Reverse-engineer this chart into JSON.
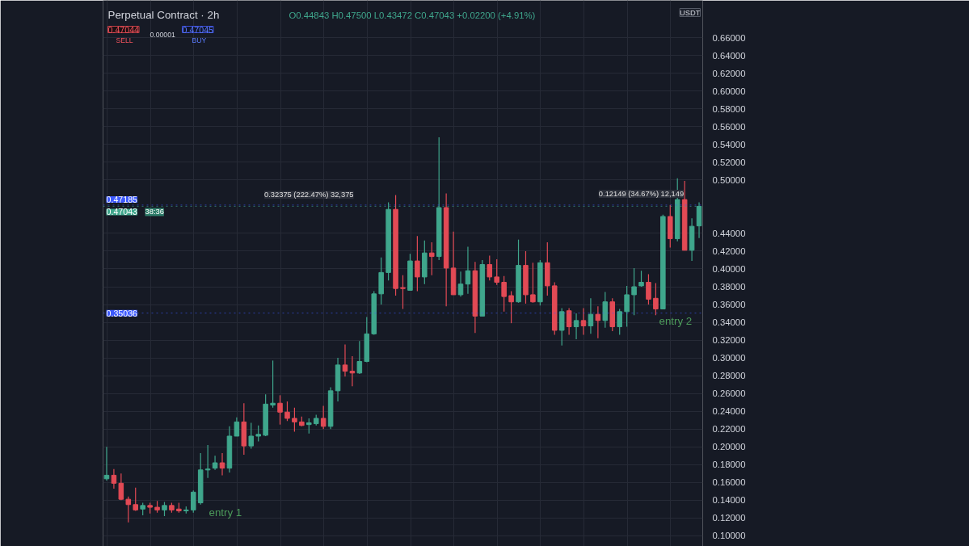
{
  "chart_data": {
    "type": "candlestick",
    "title": "Perpetual Contract · 2h",
    "subtitle": "O0.44843 H0.47500 L0.43472 C0.47043 +0.02200 (+4.91%)",
    "ylim": [
      0.088,
      0.702
    ],
    "tick_labels": "y",
    "grid": true,
    "categories": [
      null,
      null,
      null,
      null,
      null,
      null,
      null,
      null,
      null,
      null,
      null,
      null,
      null,
      null,
      null,
      null,
      null,
      null,
      null,
      null,
      null,
      null,
      null,
      null,
      null,
      null,
      null,
      null,
      null,
      null,
      null,
      null,
      null,
      null,
      null,
      null,
      null,
      null,
      null,
      null,
      null,
      null,
      null,
      null,
      null,
      null,
      null,
      null,
      null,
      null,
      null,
      null,
      null,
      null,
      null,
      null,
      null,
      null,
      null,
      null,
      null,
      null,
      null,
      null,
      null,
      null,
      null,
      null,
      null,
      null,
      null,
      null,
      null,
      null,
      null,
      null,
      null,
      null,
      null,
      null,
      null,
      null,
      null
    ],
    "yticks": [
      {
        "value": 0.1,
        "label": "0.10000"
      },
      {
        "value": 0.12,
        "label": "0.12000"
      },
      {
        "value": 0.14,
        "label": "0.14000"
      },
      {
        "value": 0.16,
        "label": "0.16000"
      },
      {
        "value": 0.18,
        "label": "0.18000"
      },
      {
        "value": 0.2,
        "label": "0.20000"
      },
      {
        "value": 0.22,
        "label": "0.22000"
      },
      {
        "value": 0.24,
        "label": "0.24000"
      },
      {
        "value": 0.26,
        "label": "0.26000"
      },
      {
        "value": 0.28,
        "label": "0.28000"
      },
      {
        "value": 0.3,
        "label": "0.30000"
      },
      {
        "value": 0.32,
        "label": "0.32000"
      },
      {
        "value": 0.34,
        "label": "0.34000"
      },
      {
        "value": 0.36,
        "label": "0.36000"
      },
      {
        "value": 0.38,
        "label": "0.38000"
      },
      {
        "value": 0.4,
        "label": "0.40000"
      },
      {
        "value": 0.42,
        "label": "0.42000"
      },
      {
        "value": 0.44,
        "label": "0.44000"
      },
      {
        "value": 0.5,
        "label": "0.50000"
      },
      {
        "value": 0.52,
        "label": "0.52000"
      },
      {
        "value": 0.54,
        "label": "0.54000"
      },
      {
        "value": 0.56,
        "label": "0.56000"
      },
      {
        "value": 0.58,
        "label": "0.58000"
      },
      {
        "value": 0.6,
        "label": "0.60000"
      },
      {
        "value": 0.62,
        "label": "0.62000"
      },
      {
        "value": 0.64,
        "label": "0.64000"
      },
      {
        "value": 0.66,
        "label": "0.66000"
      }
    ],
    "ohlc": [
      [
        0.164,
        0.2,
        0.162,
        0.168
      ],
      [
        0.168,
        0.175,
        0.153,
        0.159
      ],
      [
        0.159,
        0.17,
        0.14,
        0.141
      ],
      [
        0.141,
        0.144,
        0.115,
        0.135
      ],
      [
        0.135,
        0.154,
        0.128,
        0.129
      ],
      [
        0.13,
        0.137,
        0.123,
        0.134
      ],
      [
        0.134,
        0.137,
        0.125,
        0.132
      ],
      [
        0.132,
        0.139,
        0.126,
        0.129
      ],
      [
        0.129,
        0.138,
        0.122,
        0.134
      ],
      [
        0.134,
        0.137,
        0.126,
        0.129
      ],
      [
        0.13,
        0.137,
        0.126,
        0.128
      ],
      [
        0.128,
        0.133,
        0.125,
        0.129
      ],
      [
        0.129,
        0.151,
        0.126,
        0.149
      ],
      [
        0.137,
        0.193,
        0.135,
        0.174
      ],
      [
        0.174,
        0.202,
        0.165,
        0.175
      ],
      [
        0.176,
        0.19,
        0.174,
        0.182
      ],
      [
        0.182,
        0.193,
        0.168,
        0.176
      ],
      [
        0.176,
        0.223,
        0.171,
        0.212
      ],
      [
        0.212,
        0.233,
        0.212,
        0.228
      ],
      [
        0.228,
        0.249,
        0.191,
        0.201
      ],
      [
        0.201,
        0.227,
        0.198,
        0.212
      ],
      [
        0.212,
        0.224,
        0.206,
        0.214
      ],
      [
        0.213,
        0.259,
        0.212,
        0.248
      ],
      [
        0.247,
        0.297,
        0.244,
        0.249
      ],
      [
        0.249,
        0.258,
        0.225,
        0.239
      ],
      [
        0.239,
        0.251,
        0.229,
        0.232
      ],
      [
        0.232,
        0.244,
        0.217,
        0.228
      ],
      [
        0.228,
        0.234,
        0.223,
        0.224
      ],
      [
        0.225,
        0.232,
        0.215,
        0.227
      ],
      [
        0.226,
        0.236,
        0.224,
        0.232
      ],
      [
        0.232,
        0.246,
        0.22,
        0.223
      ],
      [
        0.223,
        0.267,
        0.22,
        0.263
      ],
      [
        0.263,
        0.3,
        0.251,
        0.292
      ],
      [
        0.292,
        0.315,
        0.279,
        0.285
      ],
      [
        0.285,
        0.302,
        0.268,
        0.283
      ],
      [
        0.283,
        0.319,
        0.282,
        0.296
      ],
      [
        0.296,
        0.346,
        0.295,
        0.327
      ],
      [
        0.327,
        0.375,
        0.326,
        0.372
      ],
      [
        0.372,
        0.413,
        0.36,
        0.396
      ],
      [
        0.396,
        0.475,
        0.387,
        0.467
      ],
      [
        0.467,
        0.483,
        0.37,
        0.378
      ],
      [
        0.379,
        0.393,
        0.355,
        0.378
      ],
      [
        0.376,
        0.417,
        0.376,
        0.409
      ],
      [
        0.409,
        0.437,
        0.375,
        0.391
      ],
      [
        0.391,
        0.432,
        0.383,
        0.418
      ],
      [
        0.418,
        0.43,
        0.393,
        0.414
      ],
      [
        0.414,
        0.548,
        0.41,
        0.469
      ],
      [
        0.469,
        0.485,
        0.358,
        0.401
      ],
      [
        0.401,
        0.442,
        0.371,
        0.371
      ],
      [
        0.371,
        0.397,
        0.369,
        0.383
      ],
      [
        0.383,
        0.425,
        0.372,
        0.398
      ],
      [
        0.398,
        0.408,
        0.328,
        0.347
      ],
      [
        0.347,
        0.41,
        0.347,
        0.405
      ],
      [
        0.405,
        0.415,
        0.387,
        0.391
      ],
      [
        0.391,
        0.411,
        0.382,
        0.385
      ],
      [
        0.385,
        0.392,
        0.352,
        0.369
      ],
      [
        0.37,
        0.375,
        0.339,
        0.363
      ],
      [
        0.363,
        0.433,
        0.362,
        0.404
      ],
      [
        0.404,
        0.42,
        0.361,
        0.371
      ],
      [
        0.371,
        0.407,
        0.362,
        0.363
      ],
      [
        0.363,
        0.41,
        0.359,
        0.407
      ],
      [
        0.407,
        0.43,
        0.37,
        0.381
      ],
      [
        0.381,
        0.385,
        0.326,
        0.331
      ],
      [
        0.331,
        0.356,
        0.314,
        0.352
      ],
      [
        0.353,
        0.356,
        0.326,
        0.335
      ],
      [
        0.335,
        0.35,
        0.321,
        0.342
      ],
      [
        0.342,
        0.356,
        0.326,
        0.336
      ],
      [
        0.336,
        0.367,
        0.327,
        0.349
      ],
      [
        0.349,
        0.358,
        0.322,
        0.342
      ],
      [
        0.342,
        0.374,
        0.334,
        0.363
      ],
      [
        0.363,
        0.367,
        0.33,
        0.335
      ],
      [
        0.335,
        0.355,
        0.326,
        0.352
      ],
      [
        0.352,
        0.381,
        0.335,
        0.371
      ],
      [
        0.371,
        0.401,
        0.348,
        0.38
      ],
      [
        0.381,
        0.398,
        0.38,
        0.385
      ],
      [
        0.385,
        0.394,
        0.36,
        0.366
      ],
      [
        0.367,
        0.384,
        0.348,
        0.355
      ],
      [
        0.355,
        0.461,
        0.355,
        0.459
      ],
      [
        0.459,
        0.472,
        0.424,
        0.434
      ],
      [
        0.434,
        0.502,
        0.431,
        0.478
      ],
      [
        0.478,
        0.499,
        0.421,
        0.421
      ],
      [
        0.421,
        0.457,
        0.409,
        0.448
      ],
      [
        0.44843,
        0.475,
        0.43472,
        0.47043
      ]
    ],
    "colors": [
      "#3fa68c",
      "#e24a55",
      "#e24a55",
      "#e24a55",
      "#e24a55",
      "#3fa68c",
      "#e24a55",
      "#e24a55",
      "#3fa68c",
      "#e24a55",
      "#e24a55",
      "#3fa68c",
      "#3fa68c",
      "#3fa68c",
      "#3fa68c",
      "#3fa68c",
      "#e24a55",
      "#3fa68c",
      "#3fa68c",
      "#e24a55",
      "#3fa68c",
      "#3fa68c",
      "#3fa68c",
      "#3fa68c",
      "#e24a55",
      "#e24a55",
      "#e24a55",
      "#e24a55",
      "#3fa68c",
      "#3fa68c",
      "#e24a55",
      "#3fa68c",
      "#3fa68c",
      "#e24a55",
      "#e24a55",
      "#3fa68c",
      "#3fa68c",
      "#3fa68c",
      "#3fa68c",
      "#3fa68c",
      "#e24a55",
      "#e24a55",
      "#3fa68c",
      "#e24a55",
      "#3fa68c",
      "#e24a55",
      "#3fa68c",
      "#e24a55",
      "#e24a55",
      "#3fa68c",
      "#3fa68c",
      "#e24a55",
      "#3fa68c",
      "#e24a55",
      "#e24a55",
      "#e24a55",
      "#e24a55",
      "#3fa68c",
      "#e24a55",
      "#e24a55",
      "#3fa68c",
      "#e24a55",
      "#e24a55",
      "#3fa68c",
      "#e24a55",
      "#3fa68c",
      "#e24a55",
      "#3fa68c",
      "#e24a55",
      "#3fa68c",
      "#e24a55",
      "#3fa68c",
      "#3fa68c",
      "#3fa68c",
      "#3fa68c",
      "#e24a55",
      "#e24a55",
      "#3fa68c",
      "#e24a55",
      "#3fa68c",
      "#e24a55",
      "#3fa68c",
      "#3fa68c"
    ],
    "ref_lines": [
      {
        "axis": "y",
        "value": 0.47043,
        "label": "0.47043",
        "color": "#3fa68c",
        "line_style": "dotted"
      },
      {
        "axis": "y",
        "value": 0.47185,
        "label": "0.47185",
        "color": "#3d5afe",
        "line_style": "dotted"
      },
      {
        "axis": "y",
        "value": 0.35036,
        "label": "0.35036",
        "color": "#3d5afe",
        "line_style": "dotted"
      }
    ],
    "annotations": [
      "0.47044",
      "SELL",
      "0.00001",
      "0.47045",
      "BUY",
      "USDT",
      "38:36",
      {
        "text": "0.32375 (222.47%) 32,375",
        "y": 0.468
      },
      {
        "text": "0.12149 (34.67%) 12,149",
        "y": 0.469
      },
      "entry 1",
      "entry 2"
    ]
  }
}
